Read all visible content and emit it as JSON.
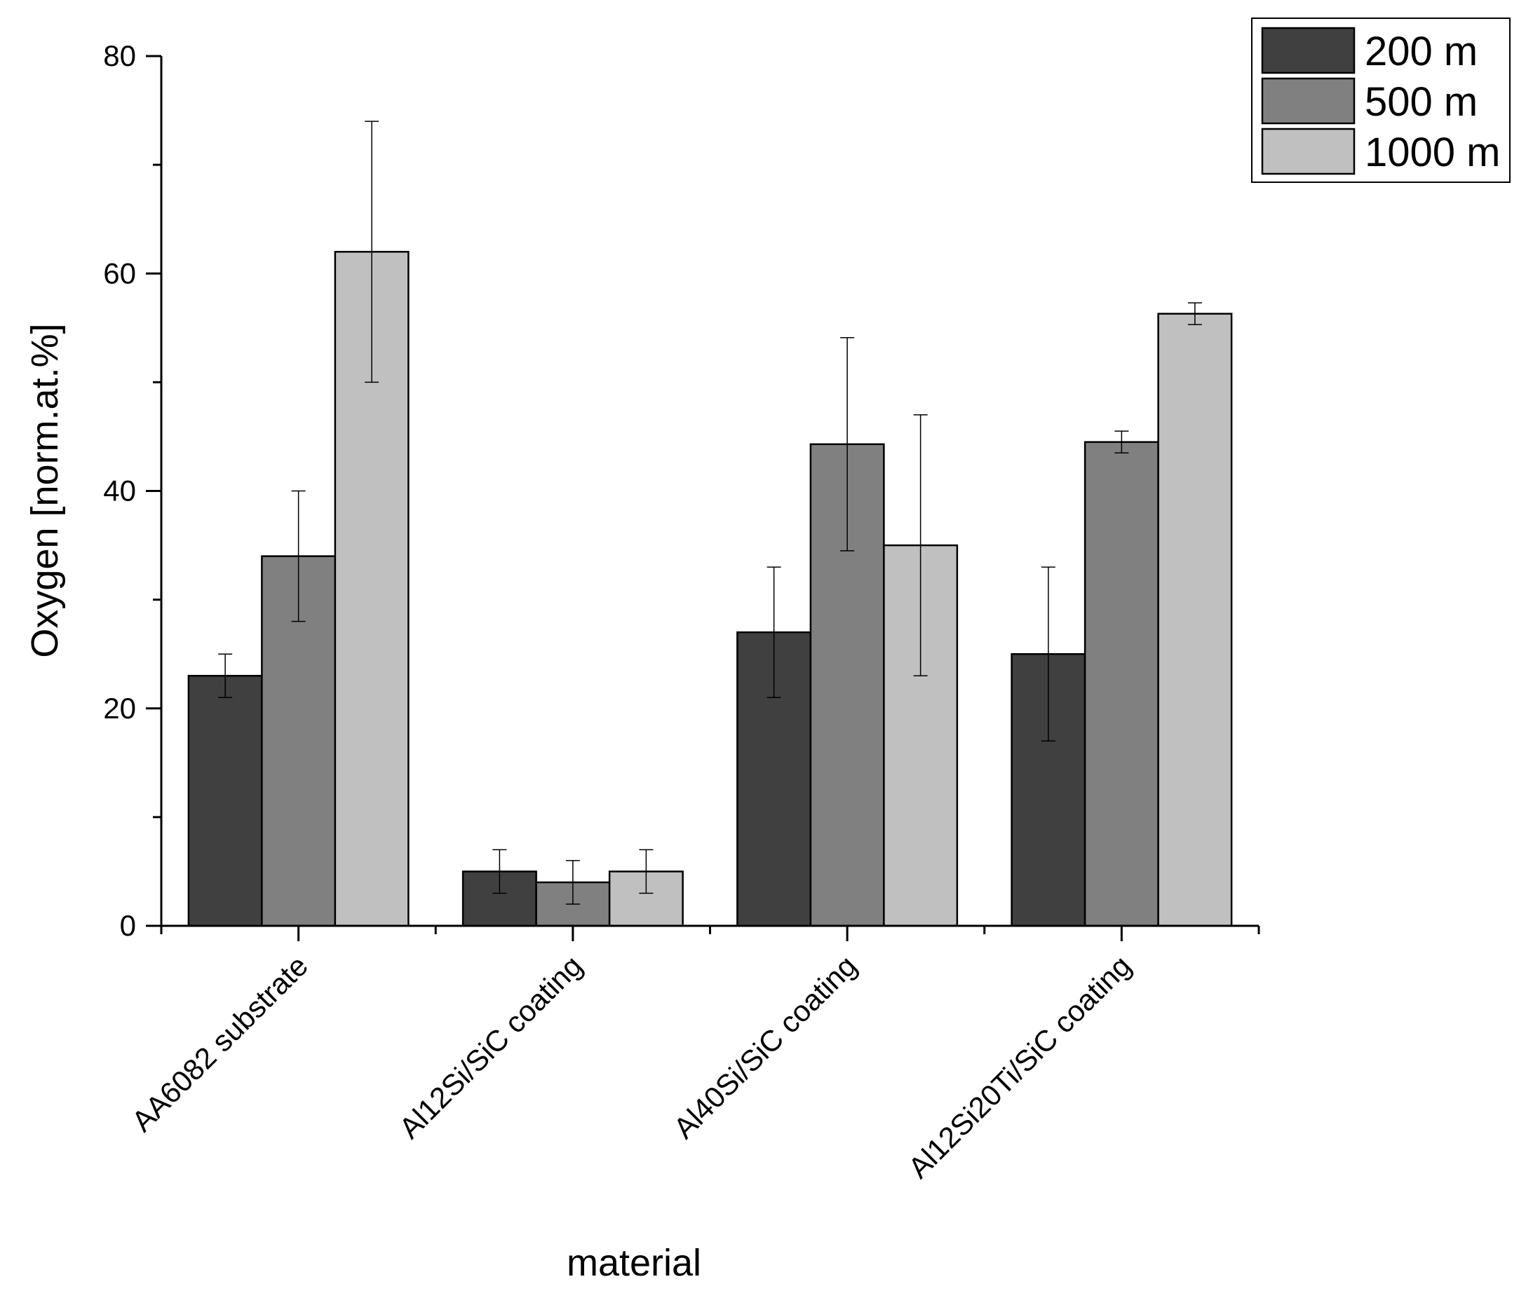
{
  "chart_data": {
    "type": "bar",
    "title": "",
    "xlabel": "material",
    "ylabel": "Oxygen [norm.at.%]",
    "ylim": [
      0,
      80
    ],
    "yticks": [
      0,
      20,
      40,
      60,
      80
    ],
    "categories": [
      "AA6082 substrate",
      "Al12Si/SiC coating",
      "Al40Si/SiC coating",
      "Al12Si20Ti/SiC coating"
    ],
    "series": [
      {
        "name": "200 m",
        "color": "#404040",
        "values": [
          23,
          5,
          27,
          25
        ],
        "errors": [
          2,
          2,
          6,
          8
        ]
      },
      {
        "name": "500 m",
        "color": "#808080",
        "values": [
          34,
          4,
          44.3,
          44.5
        ],
        "errors": [
          6,
          2,
          9.8,
          1
        ]
      },
      {
        "name": "1000 m",
        "color": "#c0c0c0",
        "values": [
          62,
          5,
          35,
          56.3
        ],
        "errors": [
          12,
          2,
          12,
          1
        ]
      }
    ],
    "legend_position": "top-right",
    "grid": false
  }
}
